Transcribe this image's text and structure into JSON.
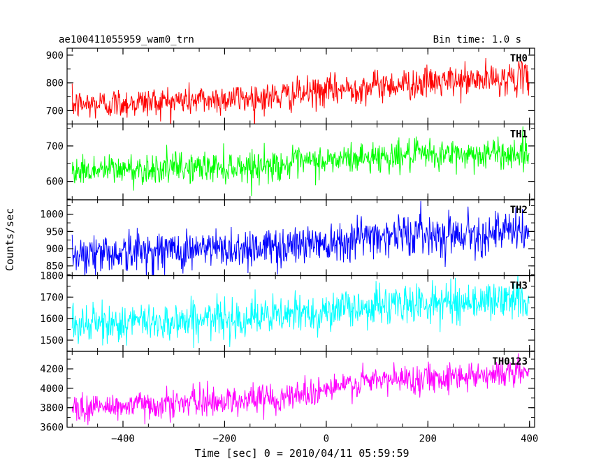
{
  "chart_data": {
    "type": "line",
    "title_left": "ae100411055959_wam0_trn",
    "title_right": "Bin time: 1.0 s",
    "xlabel": "Time [sec] 0 = 2010/04/11 05:59:59",
    "ylabel": "Counts/sec",
    "xlim": [
      -510,
      410
    ],
    "x_range": [
      -500,
      399
    ],
    "xticks": [
      -400,
      -200,
      0,
      200,
      400
    ],
    "xtick_labels": [
      "−400",
      "−200",
      "0",
      "200",
      "400"
    ],
    "panels": [
      {
        "name": "TH0",
        "color": "#ff0000",
        "ylim": [
          652,
          925
        ],
        "yticks": [
          700,
          800,
          900
        ],
        "ytick_labels": [
          "700",
          "800",
          "900"
        ],
        "trend": [
          [
            -500,
            720
          ],
          [
            -100,
            750
          ],
          [
            100,
            790
          ],
          [
            399,
            820
          ]
        ],
        "noise_sd": 28
      },
      {
        "name": "TH1",
        "color": "#00ff00",
        "ylim": [
          548,
          762
        ],
        "yticks": [
          600,
          700
        ],
        "ytick_labels": [
          "600",
          "700"
        ],
        "trend": [
          [
            -500,
            630
          ],
          [
            -100,
            645
          ],
          [
            100,
            670
          ],
          [
            399,
            680
          ]
        ],
        "noise_sd": 22
      },
      {
        "name": "TH2",
        "color": "#0000ff",
        "ylim": [
          822,
          1042
        ],
        "yticks": [
          850,
          900,
          950,
          1000
        ],
        "ytick_labels": [
          "850",
          "900",
          "950",
          "1000"
        ],
        "trend": [
          [
            -500,
            885
          ],
          [
            -100,
            905
          ],
          [
            100,
            940
          ],
          [
            399,
            948
          ]
        ],
        "noise_sd": 30
      },
      {
        "name": "TH3",
        "color": "#00ffff",
        "ylim": [
          1448,
          1800
        ],
        "yticks": [
          1500,
          1600,
          1700,
          1800
        ],
        "ytick_labels": [
          "1500",
          "1600",
          "1700",
          "1800"
        ],
        "trend": [
          [
            -500,
            1570
          ],
          [
            -100,
            1610
          ],
          [
            100,
            1660
          ],
          [
            399,
            1690
          ]
        ],
        "noise_sd": 45
      },
      {
        "name": "TH0123",
        "color": "#ff00ff",
        "ylim": [
          3600,
          4380
        ],
        "yticks": [
          3600,
          3800,
          4000,
          4200
        ],
        "ytick_labels": [
          "3600",
          "3800",
          "4000",
          "4200"
        ],
        "trend": [
          [
            -500,
            3790
          ],
          [
            -100,
            3900
          ],
          [
            100,
            4080
          ],
          [
            399,
            4170
          ]
        ],
        "noise_sd": 75
      }
    ],
    "grid": false,
    "legend": "none"
  }
}
